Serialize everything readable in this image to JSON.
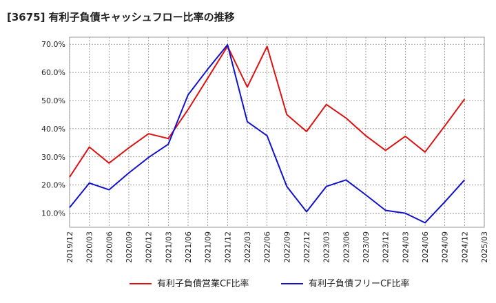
{
  "title": "[3675]  有利子負債キャッシュフロー比率の推移",
  "chart_data": {
    "type": "line",
    "title": "[3675]  有利子負債キャッシュフロー比率の推移",
    "x_ticks": [
      "2019/12",
      "2020/03",
      "2020/06",
      "2020/09",
      "2020/12",
      "2021/03",
      "2021/06",
      "2021/09",
      "2021/12",
      "2022/03",
      "2022/06",
      "2022/09",
      "2022/12",
      "2023/03",
      "2023/06",
      "2023/09",
      "2023/12",
      "2024/03",
      "2024/06",
      "2024/09",
      "2024/12",
      "2025/03"
    ],
    "y_ticks": [
      "10.0%",
      "20.0%",
      "30.0%",
      "40.0%",
      "50.0%",
      "60.0%",
      "70.0%"
    ],
    "y_tick_values": [
      10,
      20,
      30,
      40,
      50,
      60,
      70
    ],
    "ylim": [
      5,
      72.5
    ],
    "grid": true,
    "legend_position": "bottom",
    "series": [
      {
        "name": "有利子負債営業CF比率",
        "color": "#dd1111",
        "x": [
          "2019/12",
          "2020/03",
          "2020/06",
          "2020/09",
          "2020/12",
          "2021/03",
          "2021/06",
          "2021/09",
          "2021/12",
          "2022/03",
          "2022/06",
          "2022/09",
          "2022/12",
          "2023/03",
          "2023/06",
          "2023/09",
          "2023/12",
          "2024/03",
          "2024/06",
          "2024/09",
          "2024/12"
        ],
        "values": [
          22.8,
          33.5,
          27.8,
          33.2,
          38.2,
          36.5,
          46.8,
          58.0,
          69.3,
          54.8,
          69.2,
          45.0,
          39.0,
          48.6,
          43.8,
          37.5,
          32.3,
          37.3,
          31.7,
          41.0,
          50.5
        ]
      },
      {
        "name": "有利子負債フリーCF比率",
        "color": "#1111cc",
        "x": [
          "2019/12",
          "2020/03",
          "2020/06",
          "2020/09",
          "2020/12",
          "2021/03",
          "2021/06",
          "2021/09",
          "2021/12",
          "2022/03",
          "2022/06",
          "2022/09",
          "2022/12",
          "2023/03",
          "2023/06",
          "2023/09",
          "2023/12",
          "2024/03",
          "2024/06",
          "2024/09",
          "2024/12"
        ],
        "values": [
          12.0,
          20.7,
          18.3,
          24.3,
          29.8,
          34.5,
          52.0,
          61.2,
          69.8,
          42.5,
          37.5,
          19.5,
          10.5,
          19.5,
          21.8,
          16.5,
          11.0,
          10.0,
          6.6,
          14.0,
          21.8
        ]
      }
    ]
  }
}
